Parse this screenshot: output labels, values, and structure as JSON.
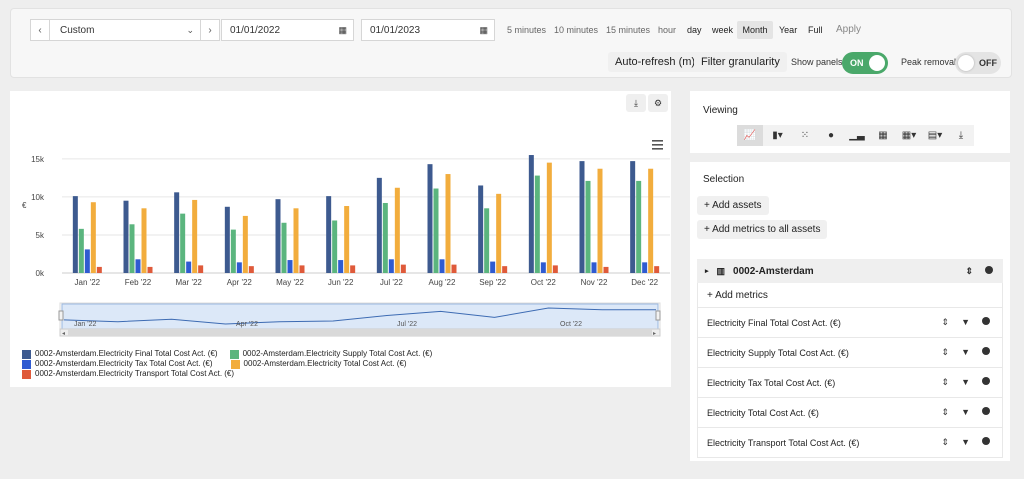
{
  "toolbar": {
    "prev_label": "‹",
    "next_label": "›",
    "range_select": "Custom",
    "start_date": "01/01/2022",
    "end_date": "01/01/2023",
    "granularities": [
      "5 minutes",
      "10 minutes",
      "15 minutes",
      "hour",
      "day",
      "week",
      "Month",
      "Year",
      "Full"
    ],
    "selected_granularity": "Month",
    "apply_label": "Apply",
    "auto_refresh_label": "Auto-refresh (m)",
    "filter_granularity_label": "Filter granularity",
    "show_panels_label": "Show panels",
    "show_panels_state": "ON",
    "peak_removal_label": "Peak removal",
    "peak_removal_state": "OFF",
    "accent_color": "#4aa86a"
  },
  "chart_data": {
    "type": "bar",
    "ylabel": "€",
    "ylim": [
      0,
      18000
    ],
    "yticks": [
      "0k",
      "5k",
      "10k",
      "15k"
    ],
    "categories": [
      "Jan '22",
      "Feb '22",
      "Mar '22",
      "Apr '22",
      "May '22",
      "Jun '22",
      "Jul '22",
      "Aug '22",
      "Sep '22",
      "Oct '22",
      "Nov '22",
      "Dec '22"
    ],
    "series": [
      {
        "name": "0002-Amsterdam.Electricity Final Total Cost Act. (€)",
        "color": "#3d5a8f",
        "values": [
          10100,
          9500,
          10600,
          8700,
          9700,
          10100,
          12500,
          14300,
          11500,
          15500,
          14700,
          14700
        ]
      },
      {
        "name": "0002-Amsterdam.Electricity Supply Total Cost Act. (€)",
        "color": "#5bb57e",
        "values": [
          5800,
          6400,
          7800,
          5700,
          6600,
          6900,
          9200,
          11100,
          8500,
          12800,
          12100,
          12100
        ]
      },
      {
        "name": "0002-Amsterdam.Electricity Tax Total Cost Act. (€)",
        "color": "#2f5bd1",
        "values": [
          3100,
          1800,
          1500,
          1400,
          1700,
          1700,
          1800,
          1800,
          1500,
          1400,
          1400,
          1400
        ]
      },
      {
        "name": "0002-Amsterdam.Electricity Total Cost Act. (€)",
        "color": "#f2ad3d",
        "values": [
          9300,
          8500,
          9600,
          7500,
          8500,
          8800,
          11200,
          13000,
          10400,
          14500,
          13700,
          13700
        ]
      },
      {
        "name": "0002-Amsterdam.Electricity Transport Total Cost Act. (€)",
        "color": "#df5a3a",
        "values": [
          800,
          800,
          1000,
          900,
          1000,
          1000,
          1100,
          1100,
          900,
          1000,
          800,
          900
        ]
      }
    ],
    "navigator_labels": [
      "Jan '22",
      "Apr '22",
      "Jul '22",
      "Oct '22"
    ],
    "legend_position": "bottom-left"
  },
  "viewing": {
    "title": "Viewing"
  },
  "selection": {
    "title": "Selection",
    "add_assets_label": "+ Add assets",
    "add_metrics_all_label": "+ Add metrics to all assets",
    "asset_name": "0002-Amsterdam",
    "add_metrics_label": "+ Add metrics",
    "metrics": [
      "Electricity Final Total Cost Act. (€)",
      "Electricity Supply Total Cost Act. (€)",
      "Electricity Tax Total Cost Act. (€)",
      "Electricity Total Cost Act. (€)",
      "Electricity Transport Total Cost Act. (€)"
    ]
  }
}
